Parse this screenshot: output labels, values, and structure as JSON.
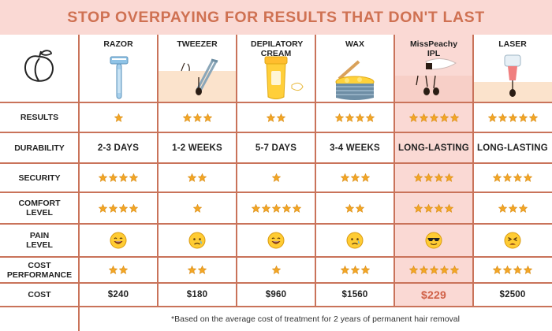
{
  "title": "STOP OVERPAYING FOR RESULTS THAT DON'T LAST",
  "columns": [
    {
      "name": "RAZOR",
      "highlight": false
    },
    {
      "name": "TWEEZER",
      "highlight": false
    },
    {
      "name": "DEPILATORY CREAM",
      "highlight": false
    },
    {
      "name": "WAX",
      "highlight": false
    },
    {
      "name": "MissPeachy IPL",
      "highlight": true
    },
    {
      "name": "LASER",
      "highlight": false
    }
  ],
  "rows": [
    {
      "label": "RESULTS",
      "type": "stars",
      "values": [
        1,
        3,
        2,
        4,
        5,
        5
      ]
    },
    {
      "label": "DURABILITY",
      "type": "text",
      "values": [
        "2-3 DAYS",
        "1-2 WEEKS",
        "5-7 DAYS",
        "3-4 WEEKS",
        "LONG-LASTING",
        "LONG-LASTING"
      ]
    },
    {
      "label": "SECURITY",
      "type": "stars",
      "values": [
        4,
        2,
        1,
        3,
        4,
        4
      ]
    },
    {
      "label": "COMFORT LEVEL",
      "type": "stars",
      "values": [
        4,
        1,
        5,
        2,
        4,
        3
      ]
    },
    {
      "label": "PAIN LEVEL",
      "type": "faces",
      "values": [
        "laughing",
        "crying",
        "laughing",
        "crying",
        "sunglasses",
        "persevering"
      ]
    },
    {
      "label": "COST PERFORMANCE",
      "type": "stars",
      "values": [
        2,
        2,
        1,
        3,
        5,
        4
      ]
    },
    {
      "label": "COST",
      "type": "text",
      "values": [
        "$240",
        "$180",
        "$960",
        "$1560",
        "$229",
        "$2500"
      ]
    }
  ],
  "footnote": "*Based on the average cost of treatment for 2 years of permanent hair removal",
  "colors": {
    "accent": "#cf7152",
    "highlight_bg": "#fad9d4",
    "grid": "#c9735a",
    "star": "#f2a626"
  },
  "icons": {
    "logo": "peach-icon",
    "column_images": [
      "razor-icon",
      "tweezer-icon",
      "cream-tube-icon",
      "wax-pot-icon",
      "ipl-device-icon",
      "laser-device-icon"
    ]
  }
}
